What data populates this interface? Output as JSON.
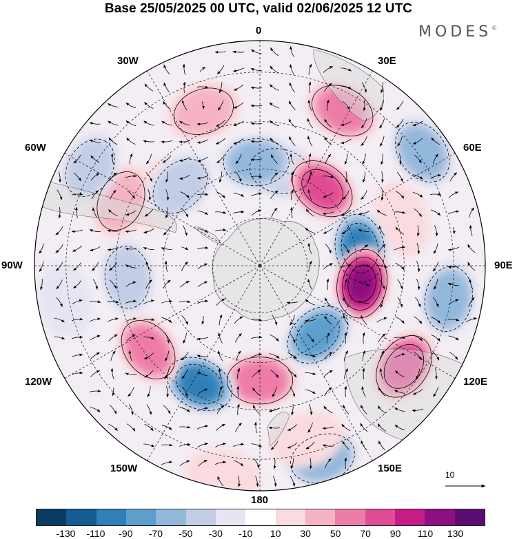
{
  "title": "Base 25/05/2025 00 UTC, valid 02/06/2025 12 UTC",
  "brand": "MODES",
  "brand_mark": "©",
  "map": {
    "projection": "south polar stereographic",
    "longitude_labels": {
      "n": "0",
      "ne1": "30E",
      "ne2": "60E",
      "e": "90E",
      "se1": "120E",
      "se2": "150E",
      "s": "180",
      "sw2": "150W",
      "sw1": "120W",
      "w": "90W",
      "nw2": "60W",
      "nw1": "30W"
    },
    "reference_vector_label": "10",
    "colors": {
      "land": "#e6e6e6",
      "graticule": "#222222"
    }
  },
  "colorbar": {
    "ticks": [
      "-130",
      "-110",
      "-90",
      "-70",
      "-50",
      "-30",
      "-10",
      "10",
      "30",
      "50",
      "70",
      "90",
      "110",
      "130"
    ],
    "colors": [
      "#0a3b61",
      "#155c93",
      "#2f7fb8",
      "#5c9fcd",
      "#92b8dc",
      "#c3cde6",
      "#e6e6f2",
      "#ffffff",
      "#fadbdf",
      "#f6b3c4",
      "#ee7ca8",
      "#e14c94",
      "#c61c86",
      "#8e0f7f",
      "#5b0d72"
    ]
  },
  "anomalies": [
    {
      "lon": 28,
      "r": 0.78,
      "v": 60
    },
    {
      "lon": 12,
      "r": 0.43,
      "v": -40
    },
    {
      "lon": 39,
      "r": 0.44,
      "v": 80
    },
    {
      "lon": 55,
      "r": 0.88,
      "v": -70
    },
    {
      "lon": 72,
      "r": 0.66,
      "v": 20
    },
    {
      "lon": 80,
      "r": 0.45,
      "v": -100
    },
    {
      "lon": 100,
      "r": 0.46,
      "v": 120
    },
    {
      "lon": 100,
      "r": 0.85,
      "v": -70
    },
    {
      "lon": 140,
      "r": 0.4,
      "v": -90
    },
    {
      "lon": 125,
      "r": 0.78,
      "v": 90
    },
    {
      "lon": 162,
      "r": 0.9,
      "v": -70
    },
    {
      "lon": 180,
      "r": 0.51,
      "v": 70
    },
    {
      "lon": -153,
      "r": 0.59,
      "v": -100
    },
    {
      "lon": -127,
      "r": 0.62,
      "v": 60
    },
    {
      "lon": -95,
      "r": 0.59,
      "v": -45
    },
    {
      "lon": -55,
      "r": 0.55,
      "v": 30
    },
    {
      "lon": -65,
      "r": 0.68,
      "v": 40
    },
    {
      "lon": -45,
      "r": 0.5,
      "v": -45
    },
    {
      "lon": -20,
      "r": 0.73,
      "v": 40
    },
    {
      "lon": -2,
      "r": 0.46,
      "v": -70
    },
    {
      "lon": -60,
      "r": 0.87,
      "v": -40
    },
    {
      "lon": -100,
      "r": 0.88,
      "v": -20
    },
    {
      "lon": 165,
      "r": 0.8,
      "v": 30
    },
    {
      "lon": -170,
      "r": 0.95,
      "v": 30
    }
  ]
}
